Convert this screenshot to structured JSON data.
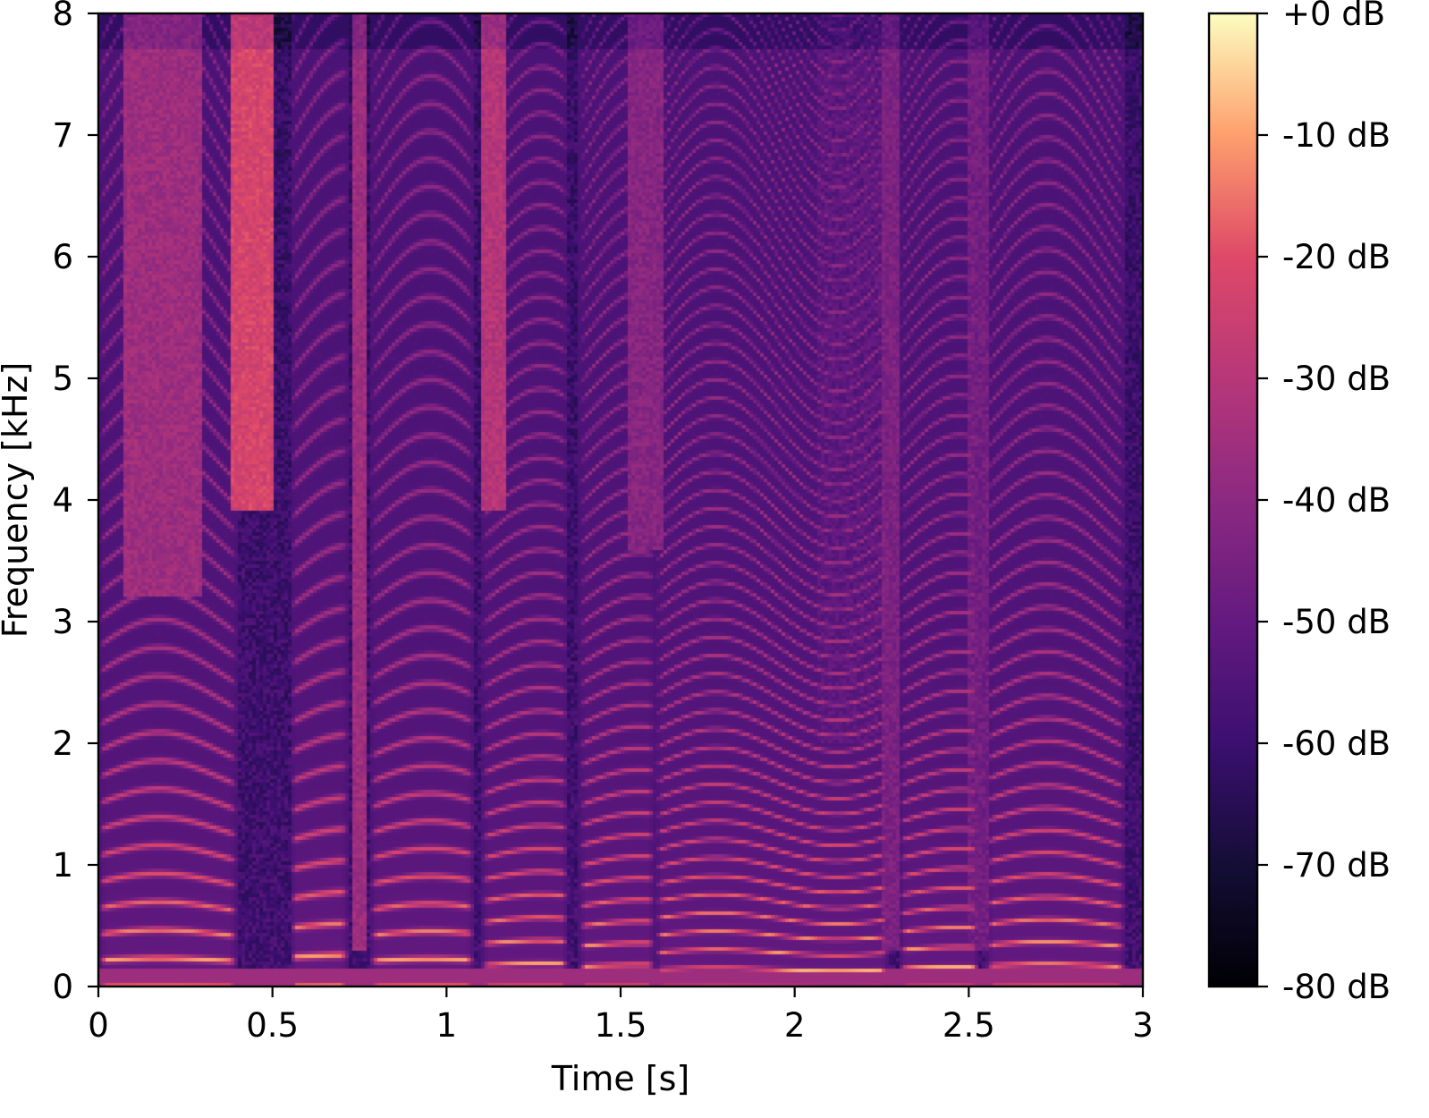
{
  "chart_data": {
    "type": "heatmap",
    "subtype": "spectrogram",
    "title": "",
    "xlabel": "Time [s]",
    "ylabel": "Frequency [kHz]",
    "xlim": [
      0,
      3
    ],
    "ylim": [
      0,
      8
    ],
    "xticks": [
      0,
      0.5,
      1,
      1.5,
      2,
      2.5,
      3
    ],
    "xtick_labels": [
      "0",
      "0.5",
      "1",
      "1.5",
      "2",
      "2.5",
      "3"
    ],
    "yticks": [
      0,
      1,
      2,
      3,
      4,
      5,
      6,
      7,
      8
    ],
    "ytick_labels": [
      "0",
      "1",
      "2",
      "3",
      "4",
      "5",
      "6",
      "7",
      "8"
    ],
    "colormap": "magma",
    "colorbar": {
      "range_db": [
        -80,
        0
      ],
      "ticks": [
        0,
        -10,
        -20,
        -30,
        -40,
        -50,
        -60,
        -70,
        -80
      ],
      "tick_labels": [
        "+0 dB",
        "-10 dB",
        "-20 dB",
        "-30 dB",
        "-40 dB",
        "-50 dB",
        "-60 dB",
        "-70 dB",
        "-80 dB"
      ],
      "placement": "right"
    },
    "grid": false,
    "legend": "none",
    "voiced_segments": [
      {
        "t_start": 0.0,
        "t_end": 0.4,
        "f0_hz": 215
      },
      {
        "t_start": 0.55,
        "t_end": 0.72,
        "f0_hz": 240
      },
      {
        "t_start": 0.78,
        "t_end": 1.08,
        "f0_hz": 210
      },
      {
        "t_start": 1.1,
        "t_end": 1.35,
        "f0_hz": 175
      },
      {
        "t_start": 1.38,
        "t_end": 1.6,
        "f0_hz": 165
      },
      {
        "t_start": 1.6,
        "t_end": 2.27,
        "f0_hz": 140
      },
      {
        "t_start": 2.3,
        "t_end": 2.53,
        "f0_hz": 150
      },
      {
        "t_start": 2.55,
        "t_end": 2.95,
        "f0_hz": 170
      }
    ],
    "fricative_segments": [
      {
        "t_start": 0.07,
        "t_end": 0.3,
        "f_low_khz": 3.2,
        "level": 0.55
      },
      {
        "t_start": 0.38,
        "t_end": 0.5,
        "f_low_khz": 3.9,
        "level": 0.72
      },
      {
        "t_start": 0.73,
        "t_end": 0.77,
        "f_low_khz": 0.3,
        "level": 0.55
      },
      {
        "t_start": 1.1,
        "t_end": 1.17,
        "f_low_khz": 3.9,
        "level": 0.62
      },
      {
        "t_start": 1.52,
        "t_end": 1.62,
        "f_low_khz": 3.6,
        "level": 0.48
      },
      {
        "t_start": 2.07,
        "t_end": 2.25,
        "f_low_khz": 2.0,
        "level": 0.35
      },
      {
        "t_start": 2.25,
        "t_end": 2.3,
        "f_low_khz": 0.3,
        "level": 0.45
      },
      {
        "t_start": 2.5,
        "t_end": 2.56,
        "f_low_khz": 0.3,
        "level": 0.42
      }
    ]
  }
}
